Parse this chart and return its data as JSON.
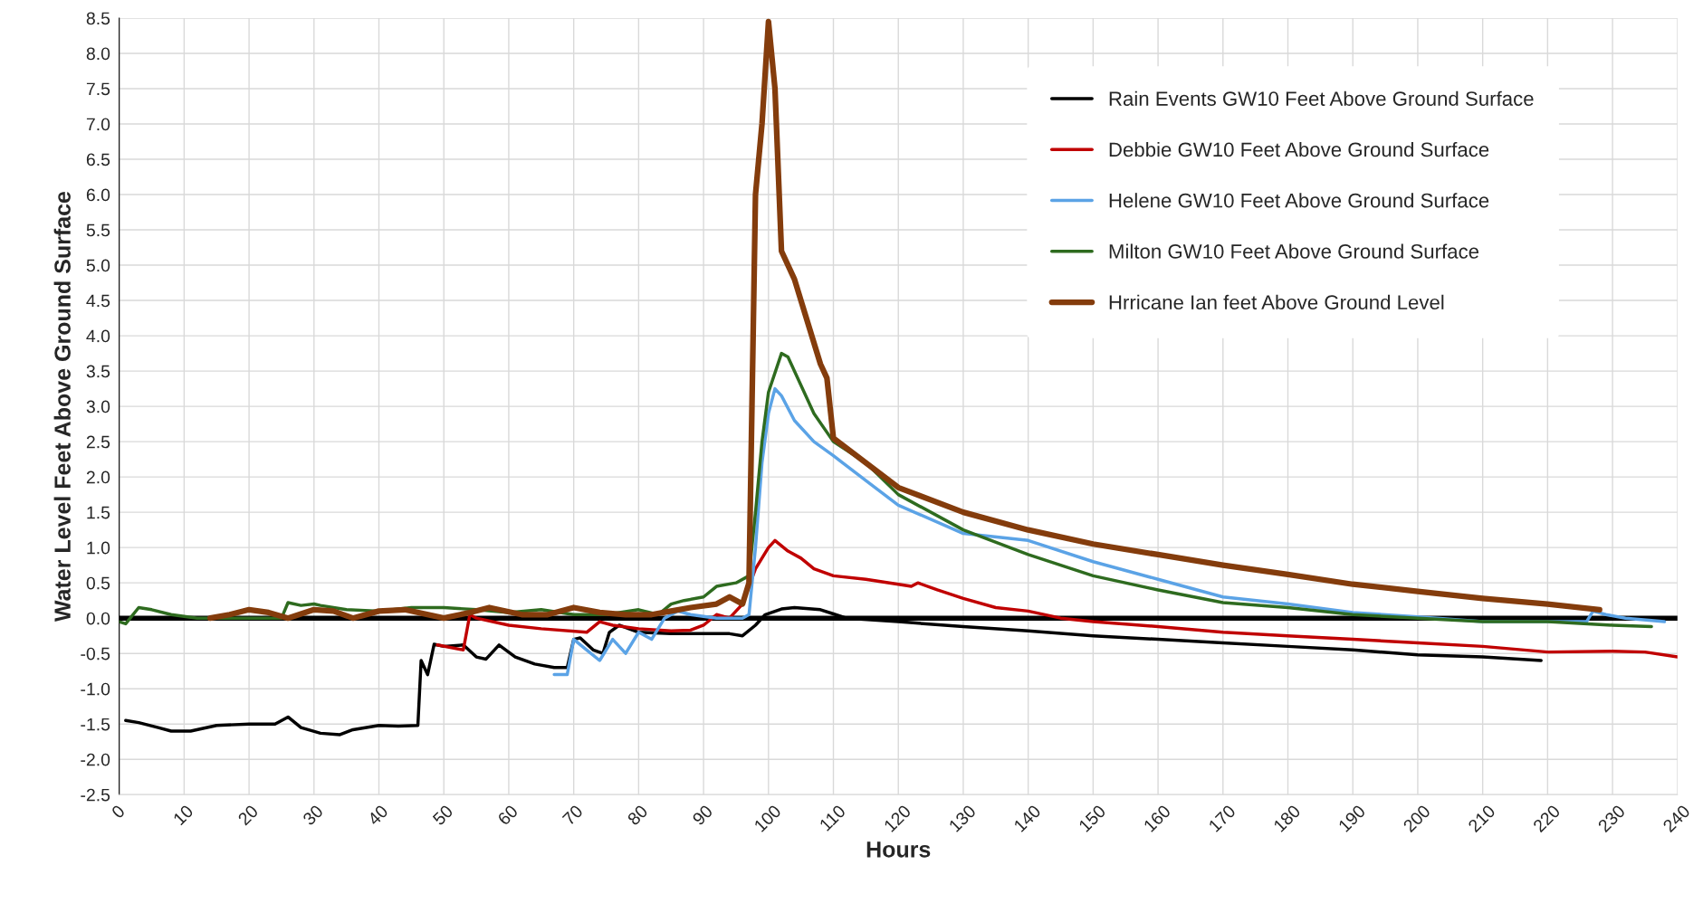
{
  "chart_data": {
    "type": "line",
    "xlabel": "Hours",
    "ylabel": "Water Level Feet Above Ground Surface",
    "xlim": [
      0,
      240
    ],
    "xticks": [
      0,
      10,
      20,
      30,
      40,
      50,
      60,
      70,
      80,
      90,
      100,
      110,
      120,
      130,
      140,
      150,
      160,
      170,
      180,
      190,
      200,
      210,
      220,
      230,
      240
    ],
    "ylim": [
      -2.5,
      8.5
    ],
    "yticks": [
      -2.5,
      {
        "value": -2,
        "label": "-2.0"
      },
      -1.5,
      {
        "value": -1,
        "label": "-1.0"
      },
      -0.5,
      {
        "value": 0,
        "label": "0.0"
      },
      0.5,
      {
        "value": 1,
        "label": "1.0"
      },
      1.5,
      {
        "value": 2,
        "label": "2.0"
      },
      2.5,
      {
        "value": 3,
        "label": "3.0"
      },
      3.5,
      {
        "value": 4,
        "label": "4.0"
      },
      4.5,
      {
        "value": 5,
        "label": "5.0"
      },
      5.5,
      {
        "value": 6,
        "label": "6.0"
      },
      6.5,
      {
        "value": 7,
        "label": "7.0"
      },
      7.5,
      {
        "value": 8,
        "label": "8.0"
      },
      8.5
    ],
    "grid": true,
    "legend": "top right",
    "marker": "none",
    "line_style": "solid",
    "ref_lines": [
      {
        "axis": "y",
        "value": 0,
        "color": "#000000"
      }
    ],
    "series": [
      {
        "name": "Rain Events GW10 Feet Above Ground Surface",
        "color": "#000000",
        "x": [
          1,
          3,
          6,
          8,
          11,
          15,
          20,
          24,
          26,
          28,
          31,
          34,
          36,
          40,
          43,
          46,
          46.5,
          47.5,
          48.5,
          50,
          53,
          55,
          56.5,
          58.5,
          61,
          64,
          67,
          69,
          70,
          71,
          73,
          74.5,
          75.5,
          77,
          80,
          85,
          90,
          94,
          96,
          98,
          99.5,
          102,
          104,
          108,
          110,
          112,
          120,
          130,
          140,
          150,
          160,
          170,
          180,
          190,
          200,
          210,
          219
        ],
        "values": [
          -1.45,
          -1.48,
          -1.55,
          -1.6,
          -1.6,
          -1.52,
          -1.5,
          -1.5,
          -1.4,
          -1.55,
          -1.63,
          -1.65,
          -1.58,
          -1.52,
          -1.53,
          -1.52,
          -0.6,
          -0.8,
          -0.37,
          -0.4,
          -0.38,
          -0.55,
          -0.58,
          -0.38,
          -0.55,
          -0.65,
          -0.7,
          -0.7,
          -0.3,
          -0.28,
          -0.45,
          -0.5,
          -0.2,
          -0.1,
          -0.2,
          -0.22,
          -0.22,
          -0.22,
          -0.25,
          -0.1,
          0.05,
          0.13,
          0.15,
          0.12,
          0.06,
          0,
          -0.05,
          -0.12,
          -0.18,
          -0.25,
          -0.3,
          -0.35,
          -0.4,
          -0.45,
          -0.52,
          -0.55,
          -0.6
        ]
      },
      {
        "name": "Debbie GW10 Feet Above Ground Surface",
        "color": "#c00000",
        "x": [
          49,
          53,
          54,
          55,
          60,
          65,
          72,
          74,
          76,
          80,
          85,
          88,
          90,
          92,
          94,
          96,
          98,
          100,
          101,
          103,
          105,
          107,
          110,
          115,
          120,
          122,
          123,
          126,
          130,
          135,
          140,
          145,
          150,
          160,
          170,
          180,
          190,
          200,
          210,
          220,
          230,
          235,
          240
        ],
        "values": [
          -0.38,
          -0.45,
          0.05,
          0.0,
          -0.1,
          -0.15,
          -0.2,
          -0.05,
          -0.1,
          -0.15,
          -0.18,
          -0.17,
          -0.1,
          0.05,
          0.0,
          0.2,
          0.7,
          1.0,
          1.1,
          0.95,
          0.85,
          0.7,
          0.6,
          0.55,
          0.48,
          0.45,
          0.5,
          0.4,
          0.28,
          0.15,
          0.1,
          0.0,
          -0.05,
          -0.12,
          -0.2,
          -0.25,
          -0.3,
          -0.35,
          -0.4,
          -0.48,
          -0.47,
          -0.48,
          -0.55
        ]
      },
      {
        "name": "Helene GW10 Feet Above Ground Surface",
        "color": "#5ba3e6",
        "x": [
          67,
          69,
          70,
          72,
          74,
          76,
          78,
          80,
          82,
          84,
          86,
          88,
          92,
          96,
          97,
          98,
          99,
          100,
          101,
          102,
          104,
          107,
          110,
          115,
          120,
          130,
          140,
          150,
          160,
          170,
          180,
          190,
          200,
          210,
          220,
          226,
          227,
          229,
          232,
          238
        ],
        "values": [
          -0.8,
          -0.8,
          -0.3,
          -0.45,
          -0.6,
          -0.3,
          -0.5,
          -0.2,
          -0.3,
          0.0,
          0.1,
          0.05,
          0.0,
          0.0,
          0.05,
          1.0,
          2.2,
          2.9,
          3.25,
          3.15,
          2.8,
          2.5,
          2.3,
          1.95,
          1.6,
          1.2,
          1.1,
          0.8,
          0.55,
          0.3,
          0.2,
          0.08,
          0.02,
          -0.05,
          -0.05,
          -0.05,
          0.1,
          0.05,
          0.0,
          -0.05
        ]
      },
      {
        "name": "Milton GW10 Feet Above Ground Surface",
        "color": "#2e6b1f",
        "x": [
          0,
          1,
          3,
          5,
          8,
          12,
          20,
          25,
          26,
          28,
          30,
          31,
          35,
          40,
          45,
          50,
          55,
          60,
          65,
          70,
          75,
          80,
          83,
          85,
          87,
          90,
          92,
          95,
          97,
          98,
          99,
          100,
          102,
          103,
          105,
          107,
          110,
          115,
          120,
          130,
          140,
          150,
          160,
          170,
          180,
          190,
          200,
          210,
          220,
          230,
          236
        ],
        "values": [
          -0.05,
          -0.08,
          0.15,
          0.12,
          0.05,
          0.0,
          0.0,
          0.0,
          0.22,
          0.18,
          0.2,
          0.18,
          0.12,
          0.1,
          0.15,
          0.15,
          0.12,
          0.08,
          0.12,
          0.05,
          0.05,
          0.12,
          0.05,
          0.2,
          0.25,
          0.3,
          0.45,
          0.5,
          0.6,
          1.5,
          2.5,
          3.2,
          3.75,
          3.7,
          3.3,
          2.9,
          2.5,
          2.2,
          1.75,
          1.25,
          0.9,
          0.6,
          0.4,
          0.22,
          0.15,
          0.05,
          0.0,
          -0.05,
          -0.05,
          -0.1,
          -0.12
        ]
      },
      {
        "name": "Hrricane Ian feet Above Ground Level",
        "color": "#843c0c",
        "x": [
          14,
          17,
          20,
          23,
          26,
          30,
          33,
          36,
          40,
          44,
          50,
          54,
          57,
          62,
          66,
          70,
          74,
          78,
          82,
          85,
          88,
          92,
          94,
          96,
          97,
          98,
          99,
          100,
          101,
          102,
          104,
          106,
          108,
          109,
          110,
          115,
          120,
          130,
          140,
          150,
          160,
          170,
          180,
          190,
          200,
          210,
          220,
          228
        ],
        "values": [
          0.0,
          0.05,
          0.12,
          0.08,
          0.0,
          0.12,
          0.1,
          0.0,
          0.1,
          0.12,
          0.0,
          0.08,
          0.15,
          0.05,
          0.05,
          0.15,
          0.08,
          0.05,
          0.05,
          0.1,
          0.15,
          0.2,
          0.3,
          0.2,
          0.5,
          6.0,
          7.0,
          8.45,
          7.5,
          5.2,
          4.8,
          4.2,
          3.6,
          3.4,
          2.55,
          2.2,
          1.85,
          1.5,
          1.25,
          1.05,
          0.9,
          0.75,
          0.62,
          0.48,
          0.38,
          0.28,
          0.2,
          0.12
        ]
      }
    ]
  }
}
